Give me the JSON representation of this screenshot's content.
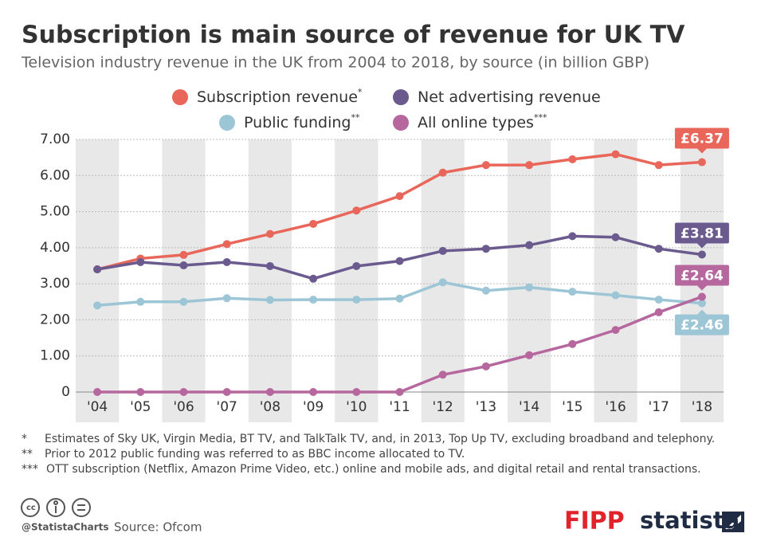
{
  "chart_data": {
    "type": "line",
    "title": "Subscription is main source of revenue for UK TV",
    "subtitle": "Television industry revenue in the UK from 2004 to 2018, by source (in billion GBP)",
    "categories": [
      "'04",
      "'05",
      "'06",
      "'07",
      "'08",
      "'09",
      "'10",
      "'11",
      "'12",
      "'13",
      "'14",
      "'15",
      "'16",
      "'17",
      "'18"
    ],
    "ylim": [
      0,
      7
    ],
    "yticks": [
      0,
      {
        "value": 1,
        "label": "1.00"
      },
      {
        "value": 2,
        "label": "2.00"
      },
      {
        "value": 3,
        "label": "3.00"
      },
      {
        "value": 4,
        "label": "4.00"
      },
      {
        "value": 5,
        "label": "5.00"
      },
      {
        "value": 6,
        "label": "6.00"
      },
      {
        "value": 7,
        "label": "7.00"
      }
    ],
    "grid": true,
    "series": [
      {
        "name": "Subscription revenue",
        "name_mark": "*",
        "color": "#e8675a",
        "values": [
          3.4,
          3.7,
          3.8,
          4.1,
          4.38,
          4.66,
          5.03,
          5.43,
          6.08,
          6.29,
          6.29,
          6.45,
          6.59,
          6.29,
          6.37
        ],
        "value_labels": [
          null,
          null,
          null,
          null,
          null,
          null,
          null,
          null,
          null,
          null,
          null,
          null,
          null,
          null,
          "£6.37"
        ]
      },
      {
        "name": "Net advertising revenue",
        "color": "#6a5a8e",
        "values": [
          3.4,
          3.6,
          3.51,
          3.6,
          3.49,
          3.14,
          3.49,
          3.63,
          3.91,
          3.97,
          4.07,
          4.32,
          4.29,
          3.97,
          3.81
        ],
        "value_labels": [
          null,
          null,
          null,
          null,
          null,
          null,
          null,
          null,
          null,
          null,
          null,
          null,
          null,
          null,
          "£3.81"
        ]
      },
      {
        "name": "Public funding",
        "name_mark": "**",
        "color": "#9cc5d6",
        "values": [
          2.4,
          2.5,
          2.5,
          2.6,
          2.55,
          2.56,
          2.56,
          2.59,
          3.04,
          2.81,
          2.9,
          2.78,
          2.68,
          2.56,
          2.46
        ],
        "value_labels": [
          null,
          null,
          null,
          null,
          null,
          null,
          null,
          null,
          null,
          null,
          null,
          null,
          null,
          null,
          "£2.46"
        ]
      },
      {
        "name": "All online types",
        "name_mark": "***",
        "color": "#b5679e",
        "values": [
          0,
          0,
          0,
          0,
          0,
          0,
          0,
          0,
          0.48,
          0.71,
          1.02,
          1.33,
          1.72,
          2.21,
          2.64
        ],
        "value_labels": [
          null,
          null,
          null,
          null,
          null,
          null,
          null,
          null,
          null,
          null,
          null,
          null,
          null,
          null,
          "£2.64"
        ]
      }
    ],
    "footnotes": [
      {
        "mark": "*",
        "text": "Estimates of Sky UK, Virgin Media, BT TV, and TalkTalk TV, and, in 2013, Top Up TV, excluding broadband and telephony."
      },
      {
        "mark": "**",
        "text": "Prior to 2012 public funding was referred to as BBC income allocated to TV."
      },
      {
        "mark": "***",
        "text": "OTT subscription (Netflix, Amazon Prime Video, etc.) online and mobile ads, and digital retail and rental transactions."
      }
    ],
    "handle": "@StatistaCharts",
    "source": "Source: Ofcom",
    "logos": [
      "FIPP",
      "statista"
    ]
  }
}
